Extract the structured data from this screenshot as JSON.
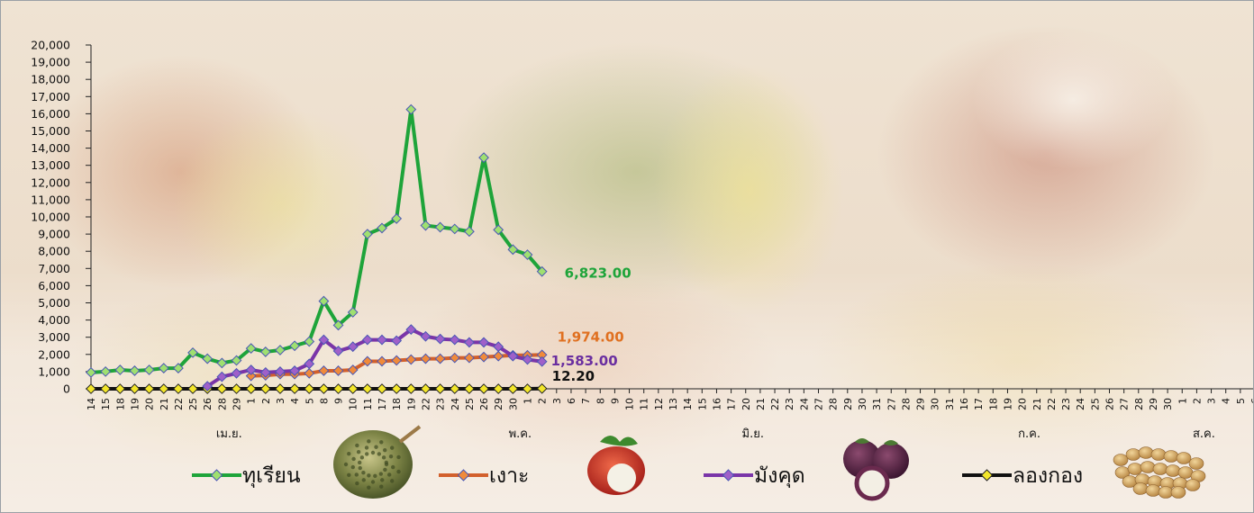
{
  "chart_data": {
    "type": "line",
    "ylim": [
      0,
      20000
    ],
    "y_ticks": [
      "0",
      "1,000",
      "2,000",
      "3,000",
      "4,000",
      "5,000",
      "6,000",
      "7,000",
      "8,000",
      "9,000",
      "10,000",
      "11,000",
      "12,000",
      "13,000",
      "14,000",
      "15,000",
      "16,000",
      "17,000",
      "18,000",
      "19,000",
      "20,000"
    ],
    "x_ticks": [
      "14",
      "15",
      "18",
      "19",
      "20",
      "21",
      "22",
      "25",
      "26",
      "28",
      "29",
      "1",
      "2",
      "3",
      "4",
      "5",
      "8",
      "9",
      "10",
      "11",
      "17",
      "18",
      "19",
      "22",
      "23",
      "24",
      "25",
      "26",
      "29",
      "30",
      "1",
      "2",
      "3",
      "6",
      "7",
      "8",
      "9",
      "10",
      "11",
      "12",
      "13",
      "14",
      "15",
      "16",
      "17",
      "20",
      "21",
      "22",
      "23",
      "24",
      "27",
      "28",
      "29",
      "30",
      "31",
      "1",
      "2",
      "3",
      "4",
      "5",
      "6",
      "7",
      "8",
      "9",
      "10",
      "11",
      "12",
      "13",
      "14",
      "15",
      "16",
      "17",
      "18",
      "19",
      "20",
      "21",
      "22",
      "23",
      "24",
      "25",
      "26",
      "27",
      "28",
      "29",
      "30",
      "1",
      "2",
      "3",
      "4",
      "5",
      "6",
      "7",
      "8",
      "9",
      "10",
      "11",
      "12",
      "13",
      "14",
      "15",
      "16",
      "17",
      "18",
      "19",
      "20",
      "21",
      "22",
      "23",
      "24",
      "25",
      "26",
      "27",
      "28",
      "29",
      "30",
      "31",
      "1",
      "2",
      "3",
      "4",
      "5",
      "6",
      "7",
      "8",
      "9",
      "10",
      "11",
      "12",
      "13",
      "14",
      "15",
      "16",
      "17",
      "18",
      "19",
      "20",
      "21",
      "22",
      "23",
      "24",
      "25",
      "26",
      "27",
      "28",
      "29",
      "30",
      "1",
      "2",
      "3",
      "4",
      "5",
      "6"
    ],
    "x_ticks_displayed": [
      "14",
      "15",
      "18",
      "19",
      "20",
      "21",
      "22",
      "25",
      "26",
      "28",
      "29",
      "1",
      "2",
      "3",
      "4",
      "5",
      "8",
      "9",
      "10",
      "11",
      "17",
      "18",
      "19",
      "22",
      "23",
      "24",
      "25",
      "26",
      "29",
      "30",
      "1",
      "2",
      "3",
      "6",
      "7",
      "8",
      "9",
      "10",
      "11",
      "12",
      "13",
      "14",
      "15",
      "16",
      "17",
      "20",
      "21",
      "22",
      "23",
      "24",
      "27",
      "28",
      "29",
      "30",
      "31",
      "27",
      "28",
      "29",
      "30",
      "31",
      "16",
      "17",
      "18",
      "19",
      "20",
      "21",
      "22",
      "23",
      "24",
      "25",
      "26",
      "27",
      "28",
      "29",
      "30",
      "1",
      "2",
      "3",
      "4",
      "5",
      "6",
      "7",
      "8",
      "6",
      "5",
      "6"
    ],
    "month_labels": [
      {
        "text": "เม.ย.",
        "at_index": 9
      },
      {
        "text": "พ.ค.",
        "at_index": 29
      },
      {
        "text": "มิ.ย.",
        "at_index": 45
      },
      {
        "text": "ก.ค.",
        "at_index": 64
      },
      {
        "text": "ส.ค.",
        "at_index": 76
      }
    ],
    "series": [
      {
        "name": "ทุเรียน",
        "color": "#1ea43a",
        "marker_fill": "#9fe070",
        "values": [
          950,
          1000,
          1100,
          1050,
          1100,
          1200,
          1200,
          2100,
          1750,
          1500,
          1650,
          2350,
          2150,
          2250,
          2500,
          2750,
          5100,
          3700,
          4450,
          9000,
          9350,
          9900,
          16250,
          9500,
          9400,
          9300,
          9150,
          13450,
          9250,
          8100,
          7800,
          6823
        ],
        "end_label": "6,823.00"
      },
      {
        "name": "เงาะ",
        "color": "#d2602c",
        "marker_fill": "#f08a3a",
        "values": [
          null,
          null,
          null,
          null,
          null,
          null,
          null,
          null,
          null,
          null,
          null,
          750,
          780,
          850,
          850,
          900,
          1050,
          1050,
          1100,
          1600,
          1600,
          1650,
          1700,
          1750,
          1750,
          1800,
          1800,
          1850,
          1900,
          1950,
          1950,
          1974
        ],
        "end_label": "1,974.00"
      },
      {
        "name": "มังคุด",
        "color": "#7a35a8",
        "marker_fill": "#9f60c9",
        "values": [
          null,
          null,
          null,
          null,
          null,
          null,
          null,
          null,
          150,
          700,
          900,
          1100,
          950,
          1000,
          1050,
          1450,
          2850,
          2200,
          2450,
          2850,
          2850,
          2800,
          3450,
          3050,
          2900,
          2850,
          2700,
          2700,
          2450,
          1900,
          1700,
          1583
        ],
        "end_label": "1,583.00"
      },
      {
        "name": "ลองกอง",
        "color": "#111111",
        "marker_fill": "#f3e62a",
        "values": [
          0,
          0,
          0,
          0,
          0,
          0,
          0,
          0,
          0,
          0,
          0,
          0,
          0,
          0,
          0,
          0,
          0,
          0,
          0,
          0,
          0,
          0,
          0,
          0,
          0,
          0,
          0,
          0,
          0,
          0,
          0,
          12.2
        ],
        "end_label": "12.20"
      }
    ],
    "legend_position": "bottom"
  }
}
